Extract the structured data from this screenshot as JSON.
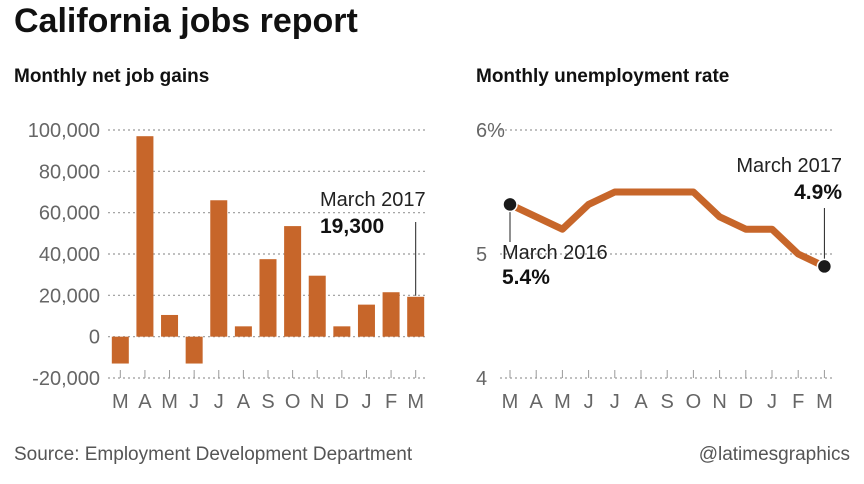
{
  "title": "California jobs report",
  "source": "Source: Employment Development Department",
  "credit": "@latimesgraphics",
  "colors": {
    "bar": "#c7662a",
    "line": "#c7662a",
    "dot": "#1a1a1a",
    "grid": "#9a9a9a",
    "text": "#333333",
    "tick": "#666666"
  },
  "chart_data": [
    {
      "type": "bar",
      "title": "Monthly net job gains",
      "categories": [
        "M",
        "A",
        "M",
        "J",
        "J",
        "A",
        "S",
        "O",
        "N",
        "D",
        "J",
        "F",
        "M"
      ],
      "values": [
        -13000,
        97000,
        10500,
        -13000,
        66000,
        5000,
        37500,
        53500,
        29500,
        5000,
        15500,
        21500,
        19300
      ],
      "ylim": [
        -20000,
        100000
      ],
      "yticks": [
        -20000,
        0,
        20000,
        40000,
        60000,
        80000,
        100000
      ],
      "ytick_labels": [
        "-20,000",
        "0",
        "20,000",
        "40,000",
        "60,000",
        "80,000",
        "100,000"
      ],
      "grid": true,
      "annotation": {
        "label": "March 2017",
        "value": "19,300",
        "index": 12
      }
    },
    {
      "type": "line",
      "title": "Monthly unemployment rate",
      "categories": [
        "M",
        "A",
        "M",
        "J",
        "J",
        "A",
        "S",
        "O",
        "N",
        "D",
        "J",
        "F",
        "M"
      ],
      "values": [
        5.4,
        5.3,
        5.2,
        5.4,
        5.5,
        5.5,
        5.5,
        5.5,
        5.3,
        5.2,
        5.2,
        5.0,
        4.9
      ],
      "ylim": [
        4,
        6
      ],
      "yticks": [
        4,
        5,
        6
      ],
      "ytick_labels": [
        "4",
        "5",
        "6%"
      ],
      "grid": true,
      "annotations": [
        {
          "label": "March 2016",
          "value": "5.4%",
          "index": 0
        },
        {
          "label": "March 2017",
          "value": "4.9%",
          "index": 12
        }
      ]
    }
  ]
}
